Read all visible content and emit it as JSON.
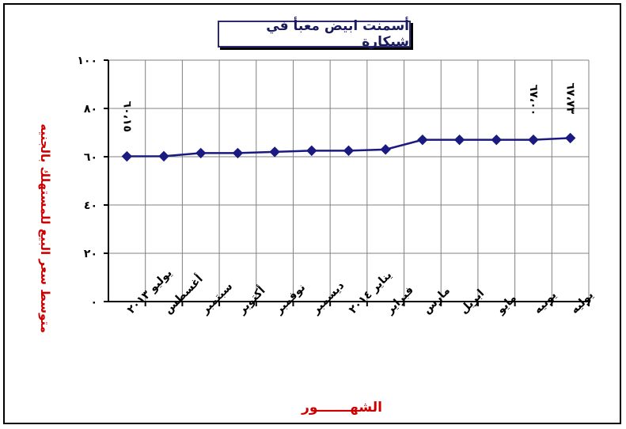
{
  "chart_data": {
    "type": "line",
    "title": "أسمنت ابيض معبأ في شيكارة",
    "xlabel": "الشهـــــــور",
    "ylabel": "متوسط سعر البيع للمستهلك بالجنيه",
    "y_tick_labels": [
      "٠",
      "٢٠",
      "٤٠",
      "٦٠",
      "٨٠",
      "١٠٠"
    ],
    "y_ticks": [
      0,
      20,
      40,
      60,
      80,
      100
    ],
    "ylim": [
      0,
      100
    ],
    "grid": true,
    "legend": "none",
    "categories": [
      "يوليو ٢٠١٣",
      "أغسطس",
      "سبتمبر",
      "أكتوبر",
      "نوفمبر",
      "ديسمبر",
      "يناير ٢٠١٤",
      "فبراير",
      "مارس",
      "ابريل",
      "مايو",
      "يونيه",
      "يوليه"
    ],
    "series": [
      {
        "values": [
          60.15,
          60.2,
          61.5,
          61.5,
          62.0,
          62.5,
          62.5,
          63.0,
          67.0,
          67.0,
          67.0,
          67.0,
          67.73
        ]
      }
    ],
    "data_labels": [
      {
        "index": 0,
        "text": "٦٠،١٥"
      },
      {
        "index": 11,
        "text": "٦٧،٠٠"
      },
      {
        "index": 12,
        "text": "٦٧،٧٣"
      }
    ],
    "colors": {
      "line": "#1a1a80",
      "marker": "#1a1a80",
      "grid": "#808080",
      "axis_title": "#cc0000"
    }
  }
}
